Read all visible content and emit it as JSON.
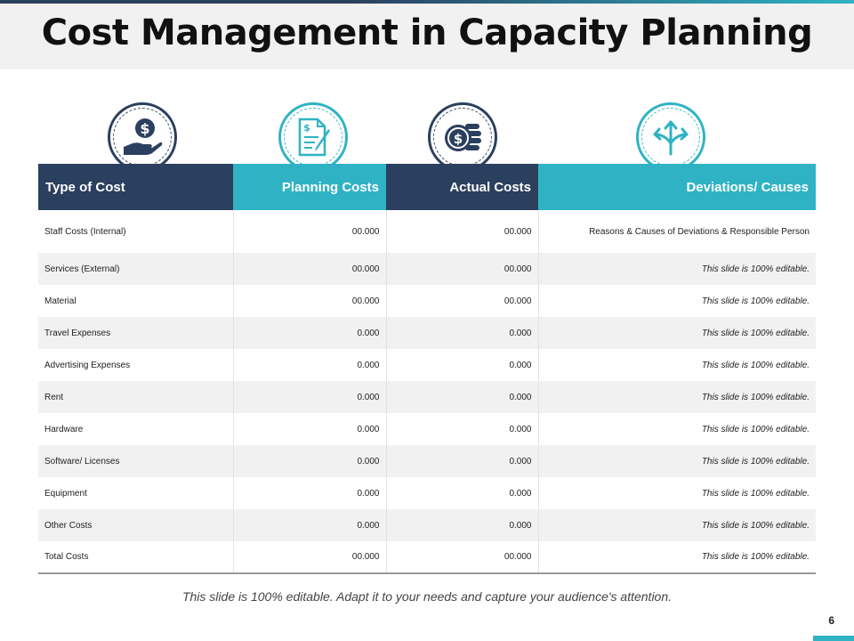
{
  "slide": {
    "title": "Cost Management in Capacity Planning",
    "footer_note": "This slide is 100% editable. Adapt it to your needs and capture your audience's attention.",
    "page_number": "6"
  },
  "icons": [
    "money-hand-icon",
    "invoice-pen-icon",
    "coin-stack-icon",
    "split-arrows-icon"
  ],
  "colors": {
    "navy": "#2b3f5e",
    "teal": "#2fb3c4",
    "row_alt": "#f1f1f1"
  },
  "table": {
    "headers": [
      "Type of Cost",
      "Planning Costs",
      "Actual Costs",
      "Deviations/ Causes"
    ],
    "rows": [
      {
        "type": "Staff Costs (Internal)",
        "planning": "00.000",
        "actual": "00.000",
        "deviation": "Reasons & Causes of Deviations & Responsible Person"
      },
      {
        "type": "Services (External)",
        "planning": "00.000",
        "actual": "00.000",
        "deviation": "This slide is 100% editable."
      },
      {
        "type": "Material",
        "planning": "00.000",
        "actual": "00.000",
        "deviation": "This slide is 100% editable."
      },
      {
        "type": "Travel Expenses",
        "planning": "0.000",
        "actual": "0.000",
        "deviation": "This slide is 100% editable."
      },
      {
        "type": "Advertising Expenses",
        "planning": "0.000",
        "actual": "0.000",
        "deviation": "This slide is 100% editable."
      },
      {
        "type": "Rent",
        "planning": "0.000",
        "actual": "0.000",
        "deviation": "This slide is 100% editable."
      },
      {
        "type": "Hardware",
        "planning": "0.000",
        "actual": "0.000",
        "deviation": "This slide is 100% editable."
      },
      {
        "type": "Software/ Licenses",
        "planning": "0.000",
        "actual": "0.000",
        "deviation": "This slide is 100% editable."
      },
      {
        "type": "Equipment",
        "planning": "0.000",
        "actual": "0.000",
        "deviation": "This slide is 100% editable."
      },
      {
        "type": "Other Costs",
        "planning": "0.000",
        "actual": "0.000",
        "deviation": "This slide is 100% editable."
      },
      {
        "type": "Total Costs",
        "planning": "00.000",
        "actual": "00.000",
        "deviation": "This slide is 100% editable."
      }
    ]
  }
}
